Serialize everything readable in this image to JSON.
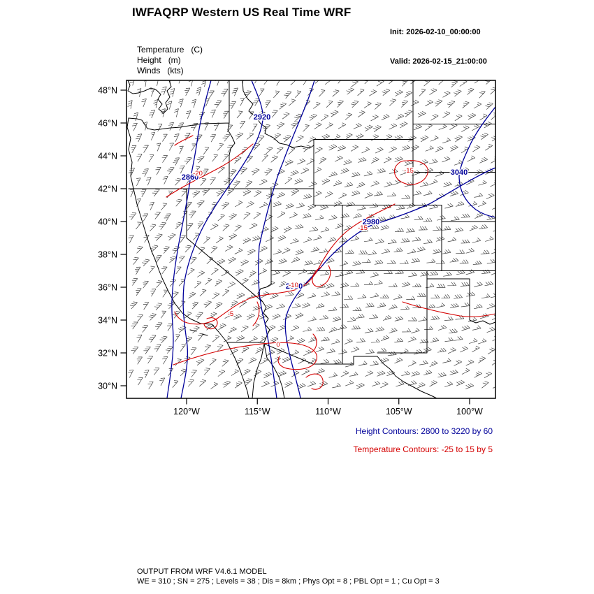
{
  "header": {
    "title": "IWFAQRP Western US Real Time WRF",
    "init": "Init: 2026-02-10_00:00:00",
    "valid": "Valid: 2026-02-15_21:00:00"
  },
  "params": {
    "lines": [
      "Temperature   (C)",
      "Height   (m)",
      "Winds   (kts)"
    ]
  },
  "map": {
    "lat_labels": [
      "48°N",
      "46°N",
      "44°N",
      "42°N",
      "40°N",
      "38°N",
      "36°N",
      "34°N",
      "32°N",
      "30°N"
    ],
    "lon_labels": [
      "120°W",
      "115°W",
      "110°W",
      "105°W",
      "100°W"
    ],
    "height_contour_labels": [
      "2920",
      "2860",
      "2980",
      "2980",
      "3040"
    ],
    "temp_contour_labels": [
      "-20",
      "-15",
      "-15",
      "-10",
      "-5",
      "0"
    ],
    "colors": {
      "height_contour": "#00009a",
      "temp_contour": "#d40000",
      "boundary": "#000000",
      "wind_barb": "#404040"
    }
  },
  "legend": {
    "height": "Height Contours: 2800 to 3220 by 60",
    "temperature": "Temperature Contours: -25 to 15 by 5"
  },
  "footer": {
    "line1": "OUTPUT FROM WRF V4.6.1 MODEL",
    "line2": "WE = 310 ; SN = 275 ; Levels = 38 ; Dis = 8km ; Phys Opt = 8 ; PBL Opt = 1 ; Cu Opt = 3"
  }
}
